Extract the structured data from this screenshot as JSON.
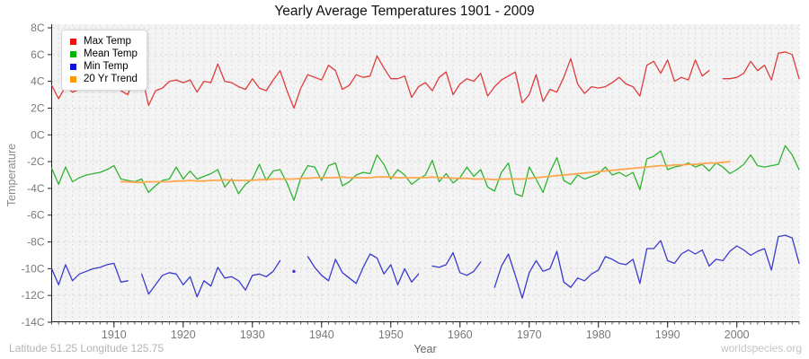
{
  "footer": {
    "location": "Latitude 51.25 Longitude 125.75",
    "watermark": "worldspecies.org"
  },
  "axes": {
    "x_label": "Year",
    "y_label": "Temperature",
    "y_ticks": [
      {
        "value": 8,
        "label": "8C"
      },
      {
        "value": 6,
        "label": "6C"
      },
      {
        "value": 4,
        "label": "4C"
      },
      {
        "value": 2,
        "label": "2C"
      },
      {
        "value": 0,
        "label": "0C"
      },
      {
        "value": -2,
        "label": "-2C"
      },
      {
        "value": -4,
        "label": "-4C"
      },
      {
        "value": -6,
        "label": "-6C"
      },
      {
        "value": -8,
        "label": "-8C"
      },
      {
        "value": -10,
        "label": "-10C"
      },
      {
        "value": -12,
        "label": "-12C"
      },
      {
        "value": -14,
        "label": "-14C"
      }
    ],
    "x_ticks": [
      1910,
      1920,
      1930,
      1940,
      1950,
      1960,
      1970,
      1980,
      1990,
      2000
    ]
  },
  "legend": {
    "items": [
      {
        "label": "Max Temp",
        "color": "#ee1111"
      },
      {
        "label": "Mean Temp",
        "color": "#00b400"
      },
      {
        "label": "Min Temp",
        "color": "#1111dd"
      },
      {
        "label": "20 Yr Trend",
        "color": "#ff9900"
      }
    ]
  },
  "style": {
    "plot_bg": "#f4f4f4",
    "grid_color": "#dcdcdc",
    "axis_color": "#222222",
    "tick_label_color": "#787878"
  },
  "chart_data": {
    "type": "line",
    "title": "Yearly Average Temperatures 1901 - 2009",
    "xlabel": "Year",
    "ylabel": "Temperature",
    "xlim": [
      1901,
      2009
    ],
    "ylim": [
      -14,
      8
    ],
    "grid": true,
    "legend_position": "top-left",
    "years": [
      1901,
      1902,
      1903,
      1904,
      1905,
      1906,
      1907,
      1908,
      1909,
      1910,
      1911,
      1912,
      1913,
      1914,
      1915,
      1916,
      1917,
      1918,
      1919,
      1920,
      1921,
      1922,
      1923,
      1924,
      1925,
      1926,
      1927,
      1928,
      1929,
      1930,
      1931,
      1932,
      1933,
      1934,
      1935,
      1936,
      1937,
      1938,
      1939,
      1940,
      1941,
      1942,
      1943,
      1944,
      1945,
      1946,
      1947,
      1948,
      1949,
      1950,
      1951,
      1952,
      1953,
      1954,
      1955,
      1956,
      1957,
      1958,
      1959,
      1960,
      1961,
      1962,
      1963,
      1964,
      1965,
      1966,
      1967,
      1968,
      1969,
      1970,
      1971,
      1972,
      1973,
      1974,
      1975,
      1976,
      1977,
      1978,
      1979,
      1980,
      1981,
      1982,
      1983,
      1984,
      1985,
      1986,
      1987,
      1988,
      1989,
      1990,
      1991,
      1992,
      1993,
      1994,
      1995,
      1996,
      1997,
      1998,
      1999,
      2000,
      2001,
      2002,
      2003,
      2004,
      2005,
      2006,
      2007,
      2008,
      2009
    ],
    "series": [
      {
        "name": "Max Temp",
        "color": "#e03c3c",
        "width": 1.3,
        "values": [
          3.7,
          2.7,
          3.6,
          3.2,
          3.4,
          3.5,
          3.4,
          3.7,
          3.8,
          4.0,
          3.3,
          3.0,
          4.4,
          4.5,
          2.2,
          3.3,
          3.5,
          4.0,
          4.1,
          3.9,
          4.1,
          3.2,
          4.0,
          3.9,
          5.3,
          4.0,
          3.9,
          3.6,
          3.4,
          4.2,
          3.5,
          3.3,
          4.1,
          4.8,
          3.3,
          2.0,
          3.5,
          4.5,
          4.3,
          4.1,
          5.2,
          4.8,
          3.4,
          3.7,
          4.5,
          4.3,
          4.4,
          5.9,
          5.0,
          4.2,
          4.2,
          4.4,
          2.8,
          3.6,
          3.9,
          3.3,
          4.3,
          4.7,
          3.0,
          3.8,
          4.2,
          4.0,
          4.6,
          2.9,
          3.6,
          4.1,
          4.4,
          4.7,
          2.4,
          3.0,
          4.5,
          2.5,
          3.4,
          3.2,
          4.3,
          5.7,
          3.8,
          3.1,
          3.6,
          3.5,
          3.6,
          3.9,
          4.3,
          3.8,
          3.6,
          2.9,
          5.2,
          5.5,
          4.6,
          5.6,
          4.0,
          4.3,
          4.1,
          5.6,
          4.4,
          4.8,
          null,
          4.2,
          4.2,
          4.3,
          4.6,
          5.5,
          4.8,
          5.2,
          4.1,
          6.1,
          6.2,
          6.0,
          4.2
        ]
      },
      {
        "name": "Mean Temp",
        "color": "#2eb431",
        "width": 1.3,
        "values": [
          -2.5,
          -3.7,
          -2.4,
          -3.5,
          -3.2,
          -3.0,
          -2.9,
          -2.8,
          -2.6,
          -2.3,
          -3.3,
          -3.4,
          -3.5,
          -3.3,
          -4.3,
          -3.8,
          -3.4,
          -3.3,
          -2.4,
          -3.3,
          -2.7,
          -3.3,
          -3.1,
          -2.9,
          -2.6,
          -3.9,
          -3.3,
          -4.4,
          -3.7,
          -3.3,
          -2.2,
          -3.4,
          -2.7,
          -2.6,
          -3.6,
          -4.9,
          -3.2,
          -2.3,
          -2.4,
          -3.4,
          -2.3,
          -2.1,
          -3.8,
          -3.5,
          -3.0,
          -2.8,
          -2.9,
          -1.5,
          -2.2,
          -3.3,
          -2.6,
          -3.0,
          -3.7,
          -3.3,
          -3.0,
          -1.9,
          -3.5,
          -2.9,
          -3.6,
          -3.2,
          -2.4,
          -3.1,
          -2.6,
          -3.9,
          -4.2,
          -2.8,
          -2.1,
          -4.4,
          -4.6,
          -2.4,
          -3.3,
          -4.3,
          -2.8,
          -1.7,
          -3.4,
          -3.7,
          -3.0,
          -3.3,
          -3.1,
          -2.9,
          -2.4,
          -3.0,
          -2.8,
          -3.1,
          -2.8,
          -4.1,
          -1.8,
          -1.6,
          -1.2,
          -2.6,
          -2.4,
          -2.3,
          -2.1,
          -2.4,
          -2.2,
          -2.7,
          -2.1,
          -2.4,
          -2.9,
          -2.6,
          -2.2,
          -1.5,
          -2.3,
          -2.4,
          -2.3,
          -2.2,
          -0.8,
          -1.5,
          -2.6
        ]
      },
      {
        "name": "Min Temp",
        "color": "#3a3ad0",
        "width": 1.3,
        "values": [
          -10.0,
          -11.2,
          -9.7,
          -10.9,
          -10.4,
          -10.2,
          -10.0,
          -9.9,
          -9.7,
          -9.6,
          -11.0,
          -10.9,
          null,
          -10.4,
          -11.9,
          -11.2,
          -10.5,
          -10.3,
          -10.4,
          -11.2,
          -10.6,
          -12.1,
          -10.9,
          -11.3,
          -9.9,
          -10.7,
          -10.6,
          -10.9,
          -11.6,
          -10.5,
          -10.4,
          -10.6,
          -10.2,
          -9.4,
          null,
          -10.2,
          null,
          -9.1,
          -9.9,
          -10.5,
          -10.9,
          -9.3,
          -10.3,
          -10.7,
          -11.1,
          -9.9,
          -8.9,
          -9.2,
          -10.4,
          -9.7,
          -11.2,
          -10.0,
          -11.0,
          -10.4,
          null,
          -9.8,
          -9.9,
          -9.7,
          -8.8,
          -10.3,
          -10.5,
          -10.2,
          -9.5,
          null,
          -11.4,
          -9.8,
          -8.9,
          -10.5,
          -12.2,
          -10.3,
          -9.4,
          -10.2,
          -10.0,
          -8.7,
          -11.0,
          -11.4,
          -10.7,
          -10.9,
          -10.4,
          -10.1,
          -9.1,
          -9.3,
          -9.6,
          -9.7,
          -9.3,
          -11.1,
          -8.5,
          -8.5,
          -7.9,
          -9.4,
          -9.6,
          -8.9,
          -8.6,
          -8.9,
          -8.6,
          -9.8,
          -9.3,
          -9.4,
          -8.7,
          -8.3,
          -8.6,
          -9.0,
          -8.7,
          -8.5,
          -10.1,
          -7.6,
          -7.5,
          -7.7,
          -9.6
        ]
      },
      {
        "name": "20 Yr Trend",
        "color": "#ffa64e",
        "width": 1.8,
        "values": [
          null,
          null,
          null,
          null,
          null,
          null,
          null,
          null,
          null,
          null,
          -3.5,
          -3.5,
          -3.55,
          -3.55,
          -3.5,
          -3.5,
          -3.5,
          -3.5,
          -3.45,
          -3.45,
          -3.4,
          -3.45,
          -3.45,
          -3.4,
          -3.4,
          -3.35,
          -3.4,
          -3.4,
          -3.4,
          -3.4,
          -3.35,
          -3.35,
          -3.3,
          -3.3,
          -3.3,
          -3.3,
          -3.25,
          -3.25,
          -3.2,
          -3.2,
          -3.2,
          -3.2,
          -3.15,
          -3.2,
          -3.2,
          -3.2,
          -3.2,
          -3.15,
          -3.15,
          -3.15,
          -3.2,
          -3.2,
          -3.2,
          -3.2,
          -3.2,
          -3.15,
          -3.2,
          -3.2,
          -3.25,
          -3.25,
          -3.25,
          -3.3,
          -3.3,
          -3.3,
          -3.35,
          -3.3,
          -3.3,
          -3.3,
          -3.3,
          -3.25,
          -3.2,
          -3.15,
          -3.1,
          -3.05,
          -3.0,
          -2.95,
          -2.9,
          -2.85,
          -2.8,
          -2.75,
          -2.7,
          -2.65,
          -2.6,
          -2.55,
          -2.5,
          -2.45,
          -2.4,
          -2.35,
          -2.3,
          -2.3,
          -2.25,
          -2.25,
          -2.2,
          -2.2,
          -2.15,
          -2.1,
          -2.1,
          -2.05,
          -2.0,
          null,
          null,
          null,
          null,
          null,
          null,
          null,
          null,
          null,
          null
        ]
      }
    ]
  }
}
